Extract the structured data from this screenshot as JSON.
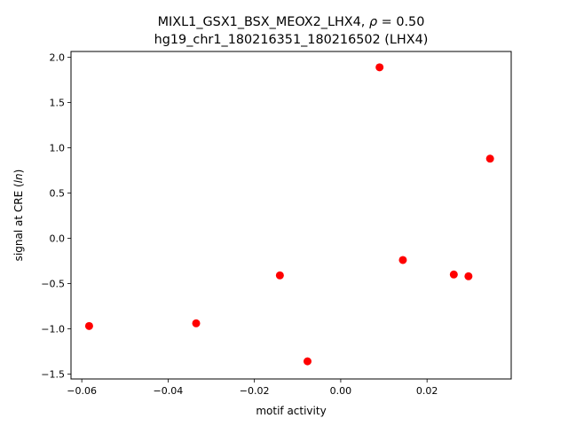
{
  "chart_data": {
    "type": "scatter",
    "title_line1_prefix": "MIXL1_GSX1_BSX_MEOX2_LHX4, ",
    "title_rho_symbol": "ρ",
    "title_rho_value": " = 0.50",
    "title_line2": "hg19_chr1_180216351_180216502 (LHX4)",
    "xlabel": "motif activity",
    "ylabel_prefix": "signal at CRE (",
    "ylabel_italic": "ln",
    "ylabel_suffix": ")",
    "xlim": [
      -0.0625,
      0.0395
    ],
    "ylim": [
      -1.555,
      2.065
    ],
    "xticks": [
      -0.06,
      -0.04,
      -0.02,
      0.0,
      0.02
    ],
    "xtick_labels": [
      "−0.06",
      "−0.04",
      "−0.02",
      "0.00",
      "0.02"
    ],
    "yticks": [
      -1.5,
      -1.0,
      -0.5,
      0.0,
      0.5,
      1.0,
      1.5,
      2.0
    ],
    "ytick_labels": [
      "−1.5",
      "−1.0",
      "−0.5",
      "0.0",
      "0.5",
      "1.0",
      "1.5",
      "2.0"
    ],
    "grid": false,
    "marker_color": "#ff0000",
    "points": [
      {
        "x": -0.0583,
        "y": -0.97
      },
      {
        "x": -0.0335,
        "y": -0.94
      },
      {
        "x": -0.0141,
        "y": -0.41
      },
      {
        "x": -0.0077,
        "y": -1.36
      },
      {
        "x": 0.009,
        "y": 1.89
      },
      {
        "x": 0.0144,
        "y": -0.24
      },
      {
        "x": 0.0262,
        "y": -0.4
      },
      {
        "x": 0.0296,
        "y": -0.42
      },
      {
        "x": 0.0346,
        "y": 0.88
      }
    ]
  }
}
